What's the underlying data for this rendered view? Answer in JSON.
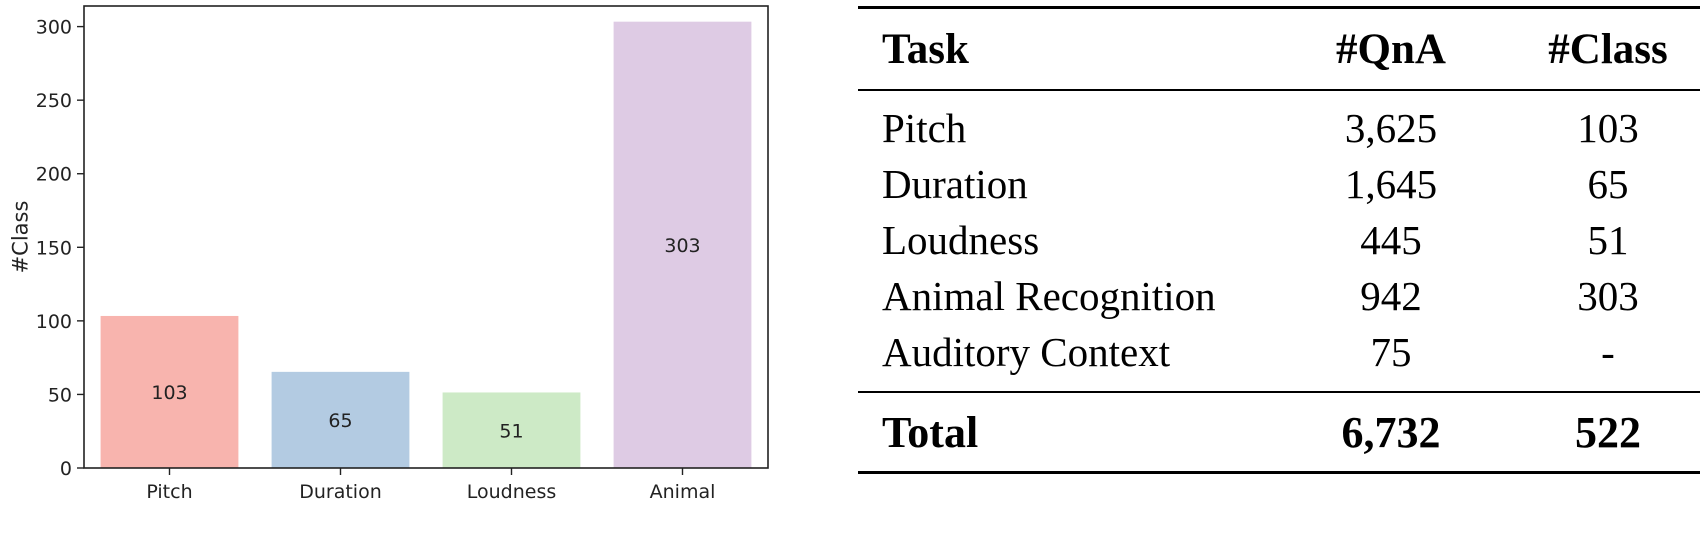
{
  "chart_data": {
    "type": "bar",
    "categories": [
      "Pitch",
      "Duration",
      "Loudness",
      "Animal"
    ],
    "values": [
      103,
      65,
      51,
      303
    ],
    "data_labels": [
      "103",
      "65",
      "51",
      "303"
    ],
    "colors": [
      "#f8b4ae",
      "#b3cbe2",
      "#cdeac6",
      "#decbe4"
    ],
    "ylabel": "#Class",
    "ylim": [
      0,
      314
    ],
    "yticks": [
      0,
      50,
      100,
      150,
      200,
      250,
      300
    ],
    "grid": false
  },
  "table": {
    "headers": {
      "task": "Task",
      "qna": "#QnA",
      "class": "#Class"
    },
    "rows": [
      {
        "task": "Pitch",
        "qna": "3,625",
        "class": "103"
      },
      {
        "task": "Duration",
        "qna": "1,645",
        "class": "65"
      },
      {
        "task": "Loudness",
        "qna": "445",
        "class": "51"
      },
      {
        "task": "Animal Recognition",
        "qna": "942",
        "class": "303"
      },
      {
        "task": "Auditory Context",
        "qna": "75",
        "class": "-"
      }
    ],
    "total": {
      "task": "Total",
      "qna": "6,732",
      "class": "522"
    }
  }
}
